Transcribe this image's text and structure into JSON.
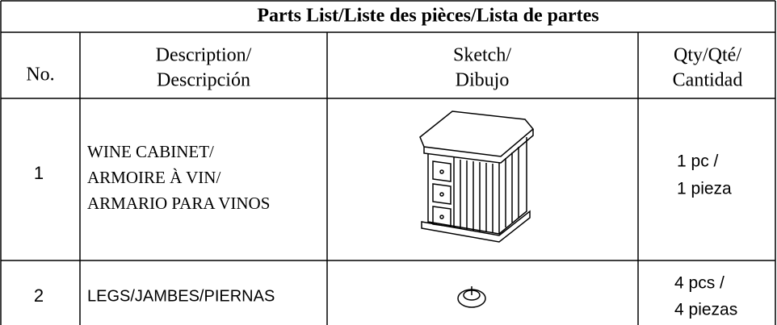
{
  "title": "Parts List/Liste des pièces/Lista de partes",
  "headers": [
    [
      "No."
    ],
    [
      "Description/",
      "Descripción"
    ],
    [
      "Sketch/",
      "Dibujo"
    ],
    [
      "Qty/Qté/",
      "Cantidad"
    ]
  ],
  "rows": [
    {
      "no": "1",
      "description": [
        "WINE CABINET/",
        "ARMOIRE À VIN/",
        "ARMARIO PARA VINOS"
      ],
      "quantity": [
        "1 pc /",
        "1 pieza"
      ]
    },
    {
      "no": "2",
      "description": [
        "LEGS/JAMBES/PIERNAS"
      ],
      "quantity": [
        "4 pcs /",
        "4 piezas"
      ]
    }
  ]
}
